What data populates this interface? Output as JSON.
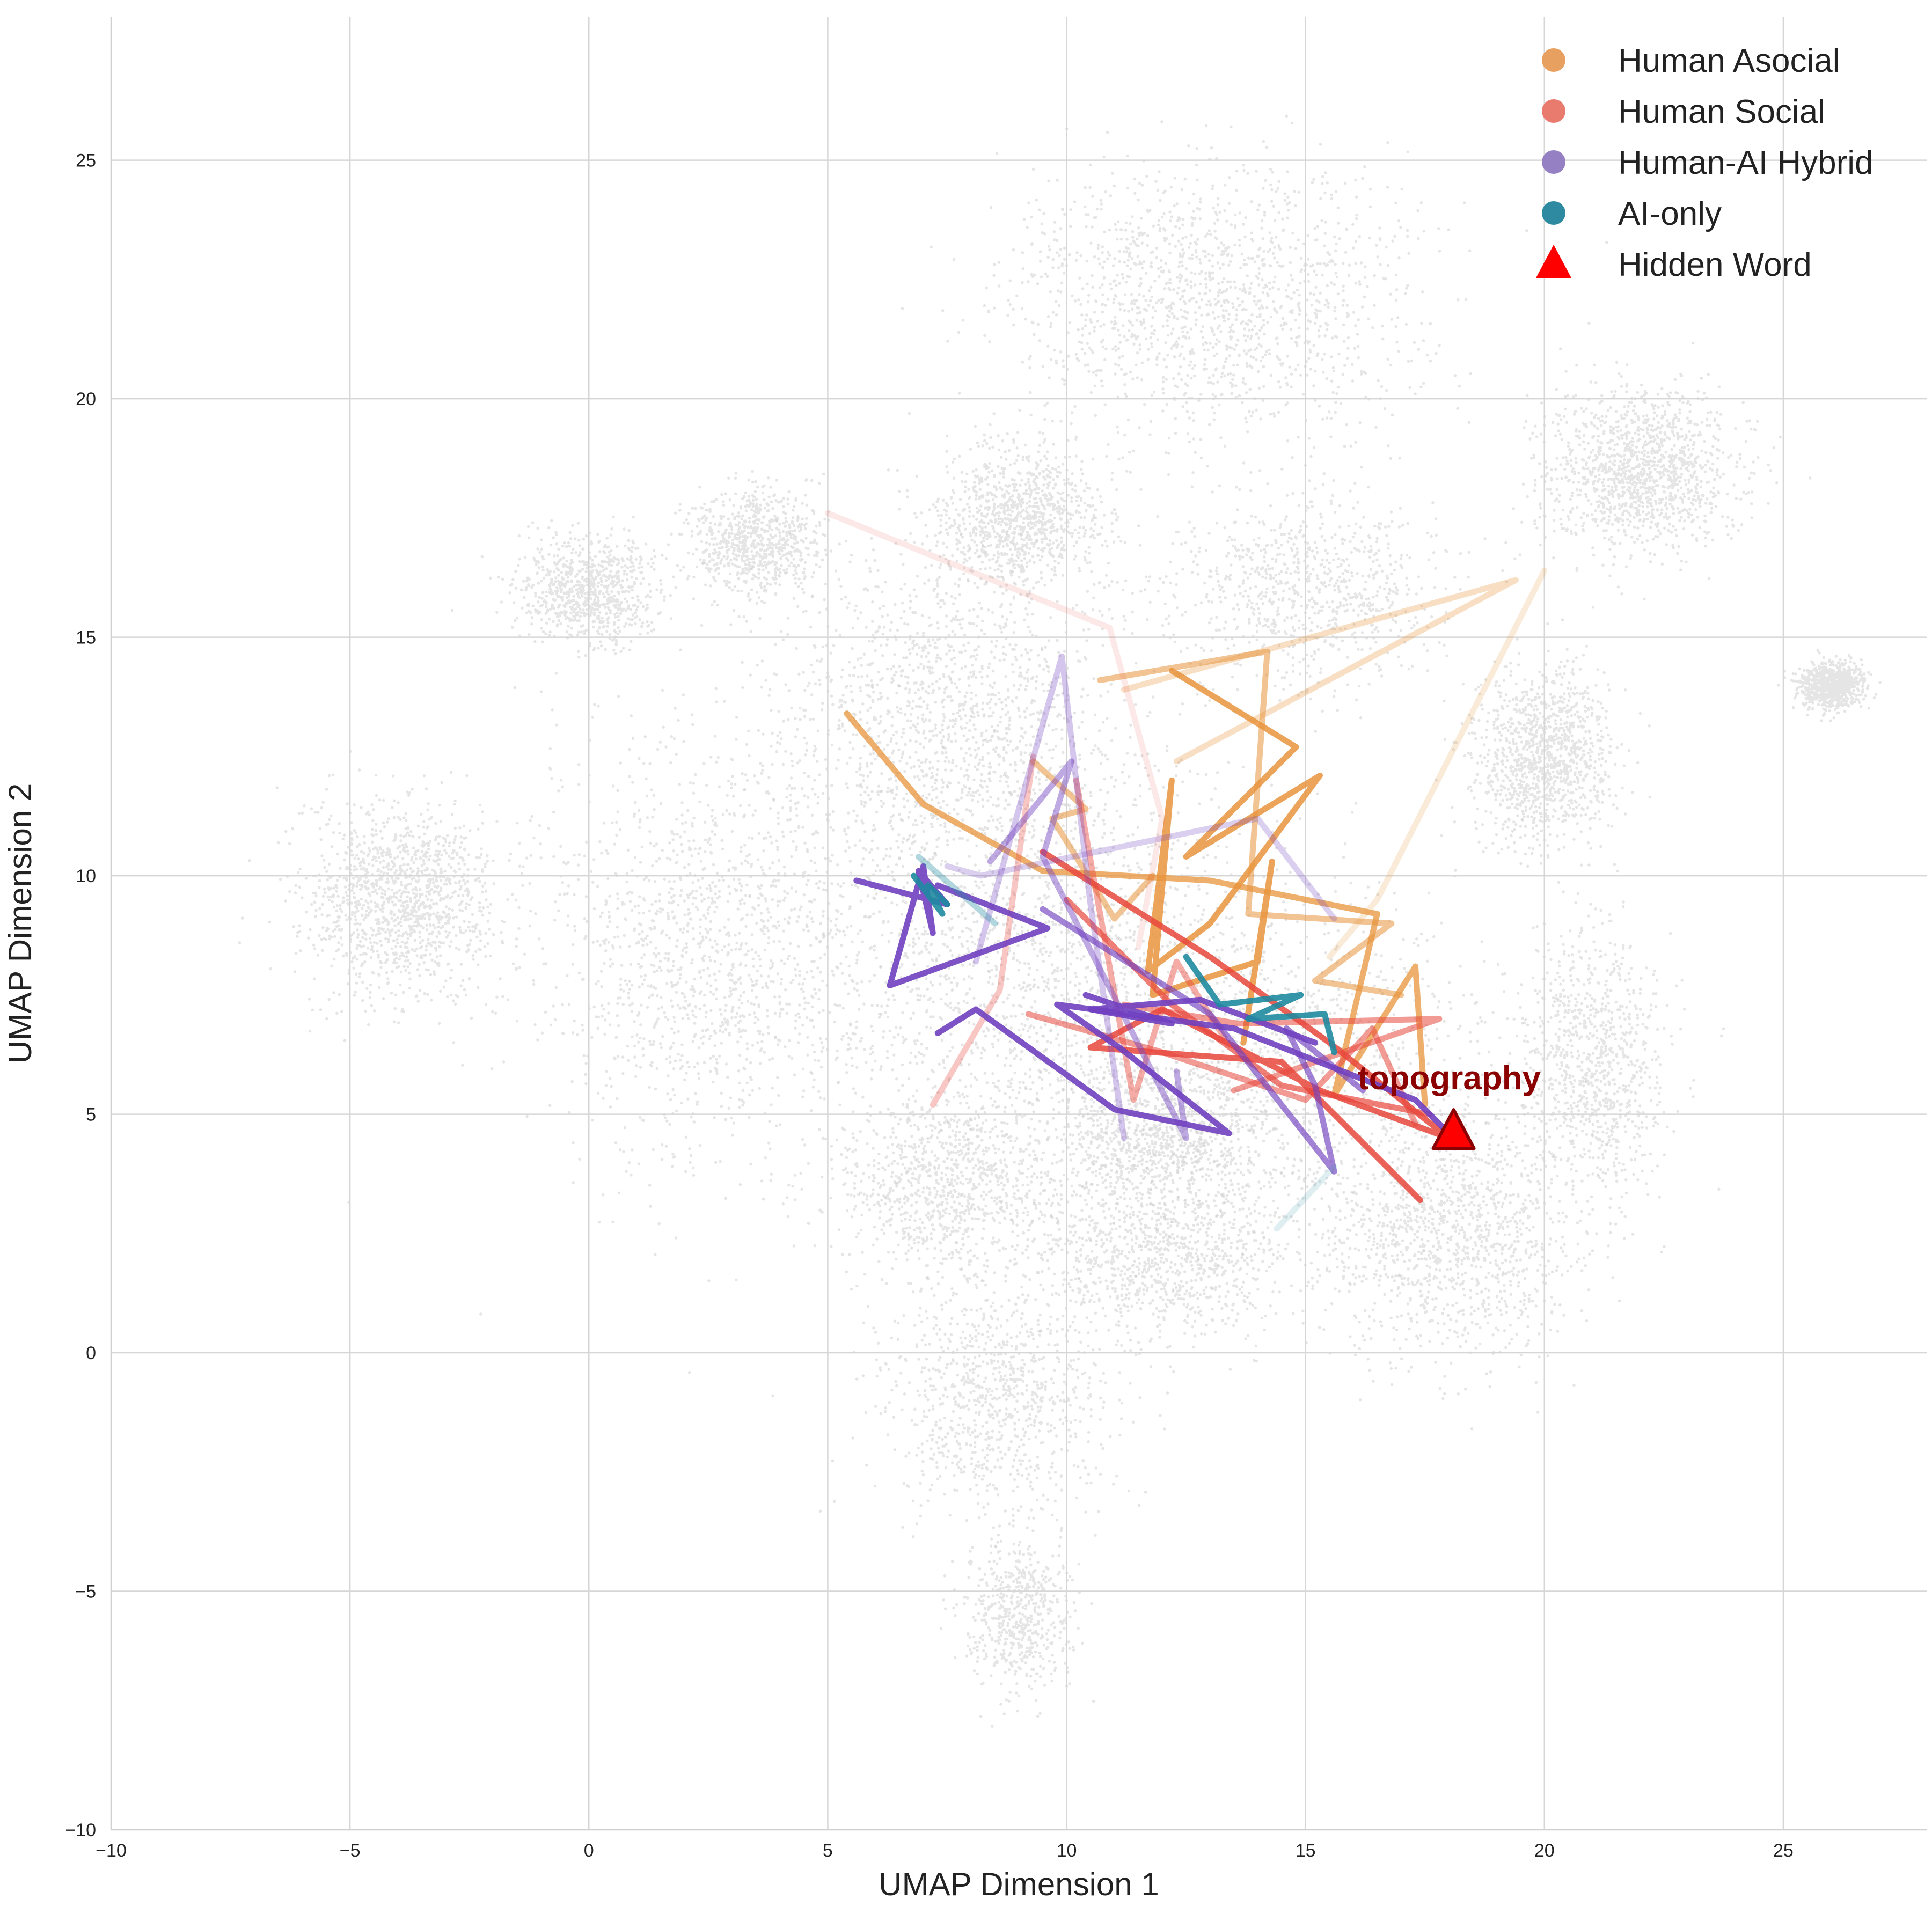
{
  "chart_data": {
    "type": "line",
    "xlabel": "UMAP Dimension 1",
    "ylabel": "UMAP Dimension 2",
    "xlim": [
      -10,
      28
    ],
    "ylim": [
      -10,
      28
    ],
    "xticks": [
      -10,
      -5,
      0,
      5,
      10,
      15,
      20,
      25
    ],
    "yticks": [
      -10,
      -5,
      0,
      5,
      10,
      15,
      20,
      25
    ],
    "xtick_labels": [
      "−10",
      "−5",
      "0",
      "5",
      "10",
      "15",
      "20",
      "25"
    ],
    "ytick_labels": [
      "−10",
      "−5",
      "0",
      "5",
      "10",
      "15",
      "20",
      "25"
    ],
    "grid": true,
    "legend_position": "top-right",
    "colors": {
      "background_points": "#cfcfcf",
      "grid": "#d6d6d6",
      "Human Asocial": "#e8a060",
      "Human Social": "#e87a6e",
      "Human-AI Hybrid": "#9580c4",
      "AI-only": "#2e8aa0",
      "Hidden Word": "#ff0000"
    },
    "series": [
      {
        "name": "Human Asocial",
        "color": "#e8943c",
        "paths": [
          {
            "opacity": 0.75,
            "points": [
              [
                5.4,
                13.4
              ],
              [
                7,
                11.5
              ],
              [
                9.5,
                10.1
              ],
              [
                13,
                9.9
              ],
              [
                16.5,
                9.2
              ],
              [
                15.6,
                5.4
              ],
              [
                17.3,
                8.1
              ],
              [
                17.5,
                5.2
              ]
            ]
          },
          {
            "opacity": 0.85,
            "points": [
              [
                12.2,
                14.3
              ],
              [
                14.8,
                12.7
              ],
              [
                12.5,
                10.4
              ],
              [
                15.3,
                12.1
              ],
              [
                13,
                9
              ],
              [
                11.7,
                8
              ],
              [
                12.2,
                12
              ],
              [
                11.8,
                7.5
              ],
              [
                14,
                8.2
              ],
              [
                14.3,
                10.3
              ],
              [
                13.7,
                6.5
              ]
            ]
          },
          {
            "opacity": 0.55,
            "points": [
              [
                10.7,
                14.1
              ],
              [
                14.2,
                14.7
              ],
              [
                13.8,
                9.2
              ],
              [
                16.8,
                9
              ],
              [
                15.2,
                7.8
              ],
              [
                17,
                7.5
              ]
            ]
          },
          {
            "opacity": 0.55,
            "points": [
              [
                9.3,
                12.4
              ],
              [
                10.4,
                11.4
              ],
              [
                9.7,
                11.2
              ],
              [
                11,
                9.1
              ],
              [
                11.8,
                10
              ]
            ]
          },
          {
            "opacity": 0.3,
            "points": [
              [
                12.3,
                12.4
              ],
              [
                19.4,
                16.2
              ],
              [
                11.2,
                13.9
              ]
            ]
          },
          {
            "opacity": 0.2,
            "points": [
              [
                20,
                16.4
              ],
              [
                16.5,
                9.5
              ],
              [
                15.5,
                8.3
              ]
            ]
          }
        ]
      },
      {
        "name": "Human Social",
        "color": "#e8473c",
        "paths": [
          {
            "opacity": 0.85,
            "points": [
              [
                9.5,
                10.5
              ],
              [
                13,
                8.3
              ],
              [
                15.5,
                6.5
              ],
              [
                18,
                4.5
              ],
              [
                15.3,
                5.5
              ],
              [
                12,
                7.2
              ],
              [
                10.5,
                6.4
              ],
              [
                14.5,
                6.1
              ],
              [
                17.4,
                3.2
              ]
            ]
          },
          {
            "opacity": 0.7,
            "points": [
              [
                10,
                9.5
              ],
              [
                12.2,
                7.3
              ],
              [
                14.5,
                5.6
              ],
              [
                17.6,
                5
              ]
            ]
          },
          {
            "opacity": 0.55,
            "points": [
              [
                9.2,
                7.1
              ],
              [
                12,
                6.3
              ],
              [
                15,
                5.3
              ],
              [
                16.4,
                6.8
              ],
              [
                17.3,
                4.8
              ]
            ]
          },
          {
            "opacity": 0.55,
            "points": [
              [
                11.2,
                7.3
              ],
              [
                13.6,
                6.9
              ],
              [
                17.8,
                7
              ],
              [
                13.5,
                5.5
              ]
            ]
          },
          {
            "opacity": 0.45,
            "points": [
              [
                10.2,
                12
              ],
              [
                11.4,
                5.3
              ],
              [
                12.3,
                8.2
              ],
              [
                13.3,
                6.6
              ]
            ]
          },
          {
            "opacity": 0.3,
            "points": [
              [
                7.2,
                5.2
              ],
              [
                8.6,
                7.6
              ],
              [
                9.3,
                12.5
              ]
            ]
          },
          {
            "opacity": 0.12,
            "points": [
              [
                5,
                17.6
              ],
              [
                10.9,
                15.2
              ],
              [
                12,
                11.2
              ],
              [
                11.5,
                8.5
              ]
            ]
          }
        ]
      },
      {
        "name": "Human-AI Hybrid",
        "color": "#7040c0",
        "paths": [
          {
            "opacity": 0.9,
            "points": [
              [
                5.6,
                9.9
              ],
              [
                7.5,
                9.4
              ],
              [
                6.9,
                10.1
              ],
              [
                7.2,
                8.8
              ],
              [
                7,
                10.2
              ],
              [
                6.3,
                7.7
              ],
              [
                9.6,
                8.9
              ],
              [
                7.3,
                9.8
              ]
            ]
          },
          {
            "opacity": 0.9,
            "points": [
              [
                7.3,
                6.7
              ],
              [
                8.1,
                7.2
              ],
              [
                11,
                5.1
              ],
              [
                13.4,
                4.6
              ],
              [
                11.1,
                6.4
              ],
              [
                9.8,
                7.3
              ],
              [
                13.5,
                6.8
              ],
              [
                17.3,
                5.3
              ],
              [
                18.1,
                4.5
              ]
            ]
          },
          {
            "opacity": 0.9,
            "points": [
              [
                10.4,
                7.5
              ],
              [
                12.2,
                6.9
              ],
              [
                10.5,
                7.2
              ],
              [
                12.8,
                7.4
              ],
              [
                15.2,
                6.5
              ]
            ]
          },
          {
            "opacity": 0.65,
            "points": [
              [
                9.5,
                9.3
              ],
              [
                13,
                7.1
              ],
              [
                15.6,
                3.8
              ],
              [
                15.2,
                5.6
              ],
              [
                14.6,
                6.8
              ],
              [
                16.2,
                5.5
              ]
            ]
          },
          {
            "opacity": 0.45,
            "points": [
              [
                8.4,
                10.3
              ],
              [
                10.1,
                12.4
              ],
              [
                9.5,
                10.4
              ],
              [
                12.5,
                4.5
              ],
              [
                12.3,
                5.9
              ]
            ]
          },
          {
            "opacity": 0.3,
            "points": [
              [
                8.1,
                8.2
              ],
              [
                9.9,
                14.6
              ],
              [
                10.5,
                9.4
              ],
              [
                11.2,
                4.5
              ]
            ]
          },
          {
            "opacity": 0.25,
            "points": [
              [
                7.5,
                10.2
              ],
              [
                8.2,
                10
              ],
              [
                14,
                11.2
              ],
              [
                15.6,
                9.1
              ]
            ]
          }
        ]
      },
      {
        "name": "AI-only",
        "color": "#1f8aa0",
        "paths": [
          {
            "opacity": 0.9,
            "points": [
              [
                6.8,
                10
              ],
              [
                7.4,
                9.2
              ],
              [
                7.1,
                9.8
              ],
              [
                7.5,
                9.4
              ],
              [
                7.3,
                9.6
              ]
            ]
          },
          {
            "opacity": 0.9,
            "points": [
              [
                12.5,
                8.3
              ],
              [
                13.2,
                7.3
              ],
              [
                14.9,
                7.5
              ],
              [
                13.8,
                7
              ],
              [
                15.4,
                7.1
              ],
              [
                15.6,
                6.3
              ]
            ]
          },
          {
            "opacity": 0.35,
            "points": [
              [
                6.9,
                10.4
              ],
              [
                8.5,
                9
              ]
            ]
          },
          {
            "opacity": 0.15,
            "points": [
              [
                14.4,
                2.6
              ],
              [
                15.6,
                3.9
              ]
            ]
          }
        ]
      }
    ],
    "hidden_word": {
      "label": "topography",
      "x": 18.1,
      "y": 4.6
    },
    "legend": [
      {
        "label": "Human Asocial",
        "marker": "circle",
        "color": "#e8a060"
      },
      {
        "label": "Human Social",
        "marker": "circle",
        "color": "#e87a6e"
      },
      {
        "label": "Human-AI Hybrid",
        "marker": "circle",
        "color": "#9580c4"
      },
      {
        "label": "AI-only",
        "marker": "circle",
        "color": "#2e8aa0"
      },
      {
        "label": "Hidden Word",
        "marker": "triangle",
        "color": "#ff0000"
      }
    ]
  }
}
